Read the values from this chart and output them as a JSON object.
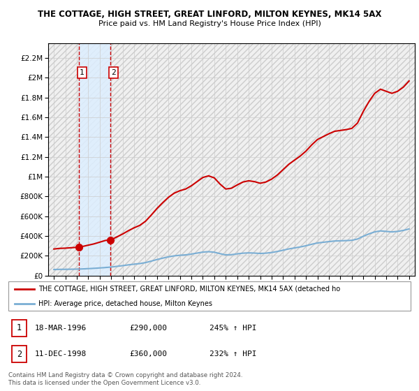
{
  "title_line1": "THE COTTAGE, HIGH STREET, GREAT LINFORD, MILTON KEYNES, MK14 5AX",
  "title_line2": "Price paid vs. HM Land Registry's House Price Index (HPI)",
  "ylabel_ticks": [
    "£0",
    "£200K",
    "£400K",
    "£600K",
    "£800K",
    "£1M",
    "£1.2M",
    "£1.4M",
    "£1.6M",
    "£1.8M",
    "£2M",
    "£2.2M"
  ],
  "ytick_values": [
    0,
    200000,
    400000,
    600000,
    800000,
    1000000,
    1200000,
    1400000,
    1600000,
    1800000,
    2000000,
    2200000
  ],
  "ylim": [
    0,
    2350000
  ],
  "xlim": [
    1993.5,
    2025.5
  ],
  "sale1_date": 1996.21,
  "sale1_price": 290000,
  "sale2_date": 1998.94,
  "sale2_price": 360000,
  "sale1_label": "1",
  "sale2_label": "2",
  "hpi_color": "#7aaed4",
  "price_color": "#cc0000",
  "sale_highlight_color": "#ddeeff",
  "legend_line1": "THE COTTAGE, HIGH STREET, GREAT LINFORD, MILTON KEYNES, MK14 5AX (detached ho",
  "legend_line2": "HPI: Average price, detached house, Milton Keynes",
  "table_row1": [
    "1",
    "18-MAR-1996",
    "£290,000",
    "245% ↑ HPI"
  ],
  "table_row2": [
    "2",
    "11-DEC-1998",
    "£360,000",
    "232% ↑ HPI"
  ],
  "footer": "Contains HM Land Registry data © Crown copyright and database right 2024.\nThis data is licensed under the Open Government Licence v3.0.",
  "bg_color": "#ffffff",
  "years_hpi": [
    1994.0,
    1994.5,
    1995.0,
    1995.5,
    1996.0,
    1996.5,
    1997.0,
    1997.5,
    1998.0,
    1998.5,
    1999.0,
    1999.5,
    2000.0,
    2000.5,
    2001.0,
    2001.5,
    2002.0,
    2002.5,
    2003.0,
    2003.5,
    2004.0,
    2004.5,
    2005.0,
    2005.5,
    2006.0,
    2006.5,
    2007.0,
    2007.5,
    2008.0,
    2008.5,
    2009.0,
    2009.5,
    2010.0,
    2010.5,
    2011.0,
    2011.5,
    2012.0,
    2012.5,
    2013.0,
    2013.5,
    2014.0,
    2014.5,
    2015.0,
    2015.5,
    2016.0,
    2016.5,
    2017.0,
    2017.5,
    2018.0,
    2018.5,
    2019.0,
    2019.5,
    2020.0,
    2020.5,
    2021.0,
    2021.5,
    2022.0,
    2022.5,
    2023.0,
    2023.5,
    2024.0,
    2024.5,
    2025.0
  ],
  "hpi_values": [
    62000,
    63500,
    64000,
    65000,
    66000,
    68000,
    71000,
    74000,
    78000,
    82000,
    87000,
    94000,
    101000,
    109000,
    116000,
    122000,
    132000,
    147000,
    163000,
    177000,
    190000,
    200000,
    206000,
    210000,
    218000,
    228000,
    238000,
    242000,
    237000,
    222000,
    210000,
    212000,
    220000,
    227000,
    230000,
    228000,
    224000,
    227000,
    234000,
    244000,
    257000,
    270000,
    280000,
    290000,
    302000,
    317000,
    330000,
    337000,
    344000,
    350000,
    352000,
    354000,
    357000,
    370000,
    398000,
    422000,
    442000,
    452000,
    447000,
    442000,
    447000,
    457000,
    472000
  ]
}
